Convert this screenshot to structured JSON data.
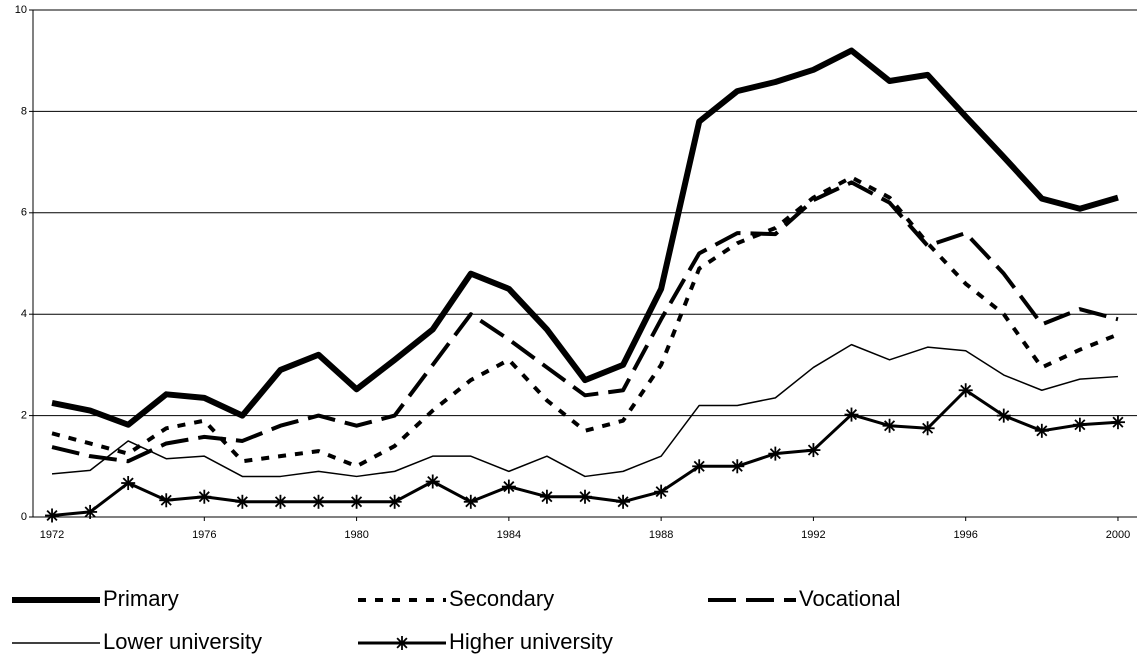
{
  "chart_data": {
    "type": "line",
    "x": [
      1972,
      1973,
      1974,
      1975,
      1976,
      1977,
      1978,
      1979,
      1980,
      1981,
      1982,
      1983,
      1984,
      1985,
      1986,
      1987,
      1988,
      1989,
      1990,
      1991,
      1992,
      1993,
      1994,
      1995,
      1996,
      1997,
      1998,
      1999,
      2000
    ],
    "xlim": [
      1971.5,
      2000.5
    ],
    "xticks": [
      1972,
      1976,
      1980,
      1984,
      1988,
      1992,
      1996,
      2000
    ],
    "ylim": [
      0,
      10
    ],
    "yticks": [
      0,
      2,
      4,
      6,
      8,
      10
    ],
    "grid": true,
    "legend": "bottom",
    "series": [
      {
        "name": "Primary",
        "color": "#000000",
        "line_style": "thick",
        "values": [
          2.25,
          2.1,
          1.82,
          2.42,
          2.35,
          2.0,
          2.9,
          3.2,
          2.52,
          3.1,
          3.7,
          4.8,
          4.5,
          3.7,
          2.7,
          3.0,
          4.5,
          7.8,
          8.4,
          8.58,
          8.82,
          9.2,
          8.6,
          8.72,
          7.9,
          7.1,
          6.28,
          6.08,
          6.3
        ]
      },
      {
        "name": "Secondary",
        "color": "#000000",
        "line_style": "dotted",
        "values": [
          1.65,
          1.45,
          1.25,
          1.75,
          1.9,
          1.1,
          1.2,
          1.3,
          1.0,
          1.4,
          2.1,
          2.7,
          3.1,
          2.3,
          1.7,
          1.9,
          3.0,
          4.9,
          5.4,
          5.7,
          6.3,
          6.7,
          6.3,
          5.4,
          4.6,
          4.0,
          2.95,
          3.3,
          3.6
        ]
      },
      {
        "name": "Vocational",
        "color": "#000000",
        "line_style": "dashed",
        "values": [
          1.38,
          1.2,
          1.1,
          1.45,
          1.58,
          1.5,
          1.8,
          2.0,
          1.8,
          2.0,
          3.0,
          4.0,
          3.5,
          2.95,
          2.4,
          2.5,
          3.9,
          5.2,
          5.6,
          5.58,
          6.25,
          6.6,
          6.2,
          5.35,
          5.6,
          4.8,
          3.8,
          4.1,
          3.9
        ]
      },
      {
        "name": "Lower university",
        "color": "#000000",
        "line_style": "thin",
        "values": [
          0.85,
          0.92,
          1.5,
          1.15,
          1.2,
          0.8,
          0.8,
          0.9,
          0.8,
          0.9,
          1.2,
          1.2,
          0.9,
          1.2,
          0.8,
          0.9,
          1.2,
          2.2,
          2.2,
          2.35,
          2.95,
          3.4,
          3.1,
          3.35,
          3.28,
          2.8,
          2.5,
          2.72,
          2.77
        ]
      },
      {
        "name": "Higher university",
        "color": "#000000",
        "line_style": "medium",
        "marker": "asterisk",
        "values": [
          0.03,
          0.1,
          0.67,
          0.33,
          0.4,
          0.3,
          0.3,
          0.3,
          0.3,
          0.3,
          0.7,
          0.3,
          0.6,
          0.4,
          0.4,
          0.3,
          0.5,
          1.0,
          1.0,
          1.25,
          1.32,
          2.02,
          1.8,
          1.75,
          2.5,
          2.0,
          1.7,
          1.82,
          1.87
        ]
      }
    ]
  }
}
